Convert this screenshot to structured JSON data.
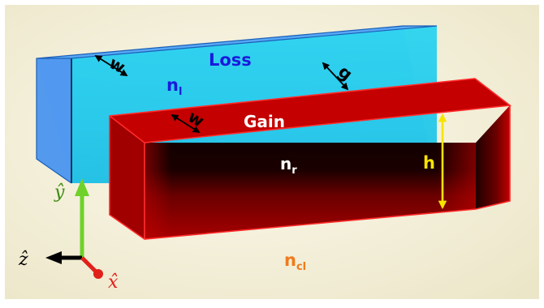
{
  "diagram": {
    "labels": {
      "loss": "Loss",
      "gain": "Gain",
      "w_left": "w",
      "w_right": "w",
      "g": "g",
      "h": "h",
      "n_l_base": "n",
      "n_l_sub": "l",
      "n_r_base": "n",
      "n_r_sub": "r",
      "n_cl_base": "n",
      "n_cl_sub": "cl"
    },
    "axes": {
      "x_label": "x̂",
      "y_label": "ŷ",
      "z_label": "ẑ"
    },
    "colors": {
      "background": "#f3efda",
      "loss_guide": "#3d9cf4",
      "loss_front": "#19c9ee",
      "gain_guide": "#b80000",
      "gain_dark": "#160000",
      "loss_text": "#1a1adc",
      "n_cl_text": "#f07a1a",
      "h_arrow": "#f5e400",
      "y_axis": "#6fd12a",
      "x_axis": "#e0201a",
      "z_axis": "#000000"
    }
  }
}
